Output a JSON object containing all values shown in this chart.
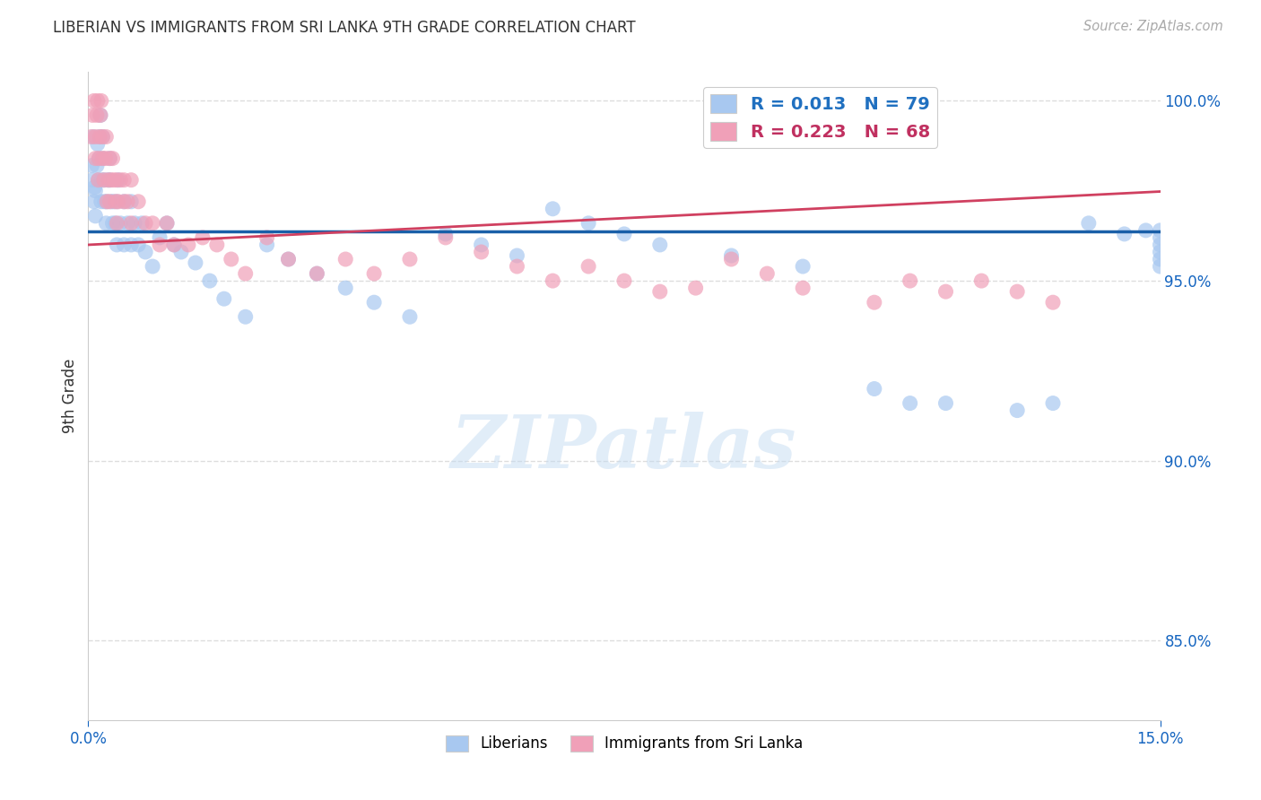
{
  "title": "LIBERIAN VS IMMIGRANTS FROM SRI LANKA 9TH GRADE CORRELATION CHART",
  "source": "Source: ZipAtlas.com",
  "ylabel_label": "9th Grade",
  "xlim": [
    0.0,
    0.15
  ],
  "ylim": [
    0.828,
    1.008
  ],
  "ytick_positions": [
    0.85,
    0.9,
    0.95,
    1.0
  ],
  "ytick_labels": [
    "85.0%",
    "90.0%",
    "95.0%",
    "100.0%"
  ],
  "xtick_positions": [
    0.0,
    0.15
  ],
  "xtick_labels": [
    "0.0%",
    "15.0%"
  ],
  "blue_R": 0.013,
  "blue_N": 79,
  "pink_R": 0.223,
  "pink_N": 68,
  "blue_color": "#A8C8F0",
  "pink_color": "#F0A0B8",
  "blue_line_color": "#1A5FA8",
  "pink_line_color": "#D04060",
  "blue_text_color": "#2070C0",
  "pink_text_color": "#C03060",
  "watermark_text": "ZIPatlas",
  "legend_blue_label": "Liberians",
  "legend_pink_label": "Immigrants from Sri Lanka",
  "blue_line_y": 0.9638,
  "pink_line_x0": 0.0,
  "pink_line_y0": 0.96,
  "pink_line_x1": 0.15,
  "pink_line_y1": 0.9748,
  "blue_x": [
    0.0005,
    0.0006,
    0.0007,
    0.0008,
    0.0009,
    0.001,
    0.001,
    0.0012,
    0.0013,
    0.0014,
    0.0015,
    0.0016,
    0.0017,
    0.0018,
    0.0019,
    0.002,
    0.002,
    0.0022,
    0.0023,
    0.0025,
    0.0026,
    0.0028,
    0.003,
    0.003,
    0.0032,
    0.0034,
    0.0035,
    0.0038,
    0.004,
    0.004,
    0.0042,
    0.0045,
    0.005,
    0.005,
    0.0055,
    0.006,
    0.006,
    0.0065,
    0.007,
    0.0075,
    0.008,
    0.009,
    0.01,
    0.011,
    0.012,
    0.013,
    0.015,
    0.017,
    0.019,
    0.022,
    0.025,
    0.028,
    0.032,
    0.036,
    0.04,
    0.045,
    0.05,
    0.055,
    0.06,
    0.065,
    0.07,
    0.075,
    0.08,
    0.09,
    0.1,
    0.11,
    0.115,
    0.12,
    0.13,
    0.135,
    0.14,
    0.145,
    0.148,
    0.15,
    0.15,
    0.15,
    0.15,
    0.15,
    0.15
  ],
  "blue_y": [
    0.982,
    0.978,
    0.99,
    0.972,
    0.976,
    0.968,
    0.975,
    0.982,
    0.988,
    0.978,
    0.984,
    0.99,
    0.996,
    0.972,
    0.978,
    0.984,
    0.99,
    0.978,
    0.972,
    0.966,
    0.972,
    0.978,
    0.984,
    0.978,
    0.972,
    0.966,
    0.972,
    0.966,
    0.96,
    0.972,
    0.978,
    0.966,
    0.96,
    0.972,
    0.966,
    0.96,
    0.972,
    0.966,
    0.96,
    0.966,
    0.958,
    0.954,
    0.962,
    0.966,
    0.96,
    0.958,
    0.955,
    0.95,
    0.945,
    0.94,
    0.96,
    0.956,
    0.952,
    0.948,
    0.944,
    0.94,
    0.963,
    0.96,
    0.957,
    0.97,
    0.966,
    0.963,
    0.96,
    0.957,
    0.954,
    0.92,
    0.916,
    0.916,
    0.914,
    0.916,
    0.966,
    0.963,
    0.964,
    0.964,
    0.962,
    0.96,
    0.958,
    0.956,
    0.954
  ],
  "pink_x": [
    0.0004,
    0.0006,
    0.0008,
    0.001,
    0.001,
    0.0012,
    0.0013,
    0.0014,
    0.0015,
    0.0016,
    0.0017,
    0.0018,
    0.002,
    0.002,
    0.0022,
    0.0024,
    0.0025,
    0.0026,
    0.0028,
    0.003,
    0.003,
    0.0032,
    0.0034,
    0.0036,
    0.0038,
    0.004,
    0.004,
    0.0042,
    0.0045,
    0.005,
    0.005,
    0.0055,
    0.006,
    0.006,
    0.007,
    0.008,
    0.009,
    0.01,
    0.011,
    0.012,
    0.014,
    0.016,
    0.018,
    0.02,
    0.022,
    0.025,
    0.028,
    0.032,
    0.036,
    0.04,
    0.045,
    0.05,
    0.055,
    0.06,
    0.065,
    0.07,
    0.075,
    0.08,
    0.085,
    0.09,
    0.095,
    0.1,
    0.11,
    0.115,
    0.12,
    0.125,
    0.13,
    0.135
  ],
  "pink_y": [
    0.99,
    0.996,
    1.0,
    0.984,
    0.99,
    0.996,
    1.0,
    0.978,
    0.984,
    0.99,
    0.996,
    1.0,
    0.984,
    0.99,
    0.978,
    0.984,
    0.99,
    0.972,
    0.978,
    0.984,
    0.972,
    0.978,
    0.984,
    0.978,
    0.972,
    0.966,
    0.978,
    0.972,
    0.978,
    0.972,
    0.978,
    0.972,
    0.978,
    0.966,
    0.972,
    0.966,
    0.966,
    0.96,
    0.966,
    0.96,
    0.96,
    0.962,
    0.96,
    0.956,
    0.952,
    0.962,
    0.956,
    0.952,
    0.956,
    0.952,
    0.956,
    0.962,
    0.958,
    0.954,
    0.95,
    0.954,
    0.95,
    0.947,
    0.948,
    0.956,
    0.952,
    0.948,
    0.944,
    0.95,
    0.947,
    0.95,
    0.947,
    0.944
  ]
}
